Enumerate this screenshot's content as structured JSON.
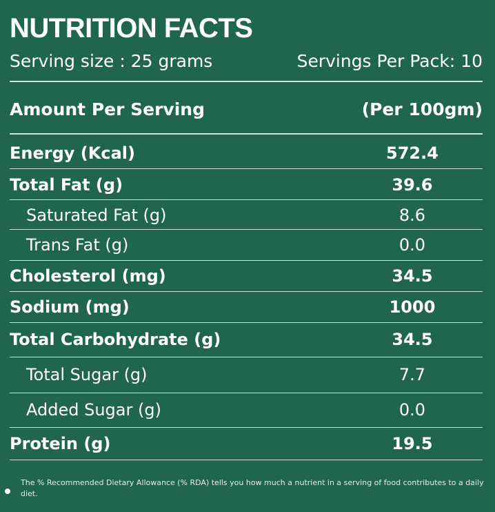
{
  "title": "NUTRITION FACTS",
  "serving_size": "Serving size : 25 grams",
  "servings_per_pack": "Servings Per Pack: 10",
  "header": {
    "amount_label": "Amount Per Serving",
    "per_label": "(Per 100gm)"
  },
  "rows": [
    {
      "name": "Energy (Kcal)",
      "value": "572.4",
      "bold": true,
      "indent": false
    },
    {
      "name": "Total Fat (g)",
      "value": "39.6",
      "bold": true,
      "indent": false
    },
    {
      "name": "Saturated Fat (g)",
      "value": "8.6",
      "bold": false,
      "indent": true
    },
    {
      "name": "Trans Fat (g)",
      "value": "0.0",
      "bold": false,
      "indent": true
    },
    {
      "name": "Cholesterol (mg)",
      "value": "34.5",
      "bold": true,
      "indent": false
    },
    {
      "name": "Sodium  (mg)",
      "value": "1000",
      "bold": true,
      "indent": false
    },
    {
      "name": "Total Carbohydrate (g)",
      "value": "34.5",
      "bold": true,
      "indent": false
    },
    {
      "name": "Total Sugar (g)",
      "value": "7.7",
      "bold": false,
      "indent": true
    },
    {
      "name": "Added Sugar (g)",
      "value": "0.0",
      "bold": false,
      "indent": true
    },
    {
      "name": "Protein (g)",
      "value": "19.5",
      "bold": true,
      "indent": false
    }
  ],
  "footnote": "The % Recommended Dietary Allowance (% RDA) tells you how much a nutrient in a serving of food contributes to a daily diet.",
  "colors": {
    "background": "#20664d",
    "text": "#ffffff",
    "rule": "#cfe6dc"
  }
}
